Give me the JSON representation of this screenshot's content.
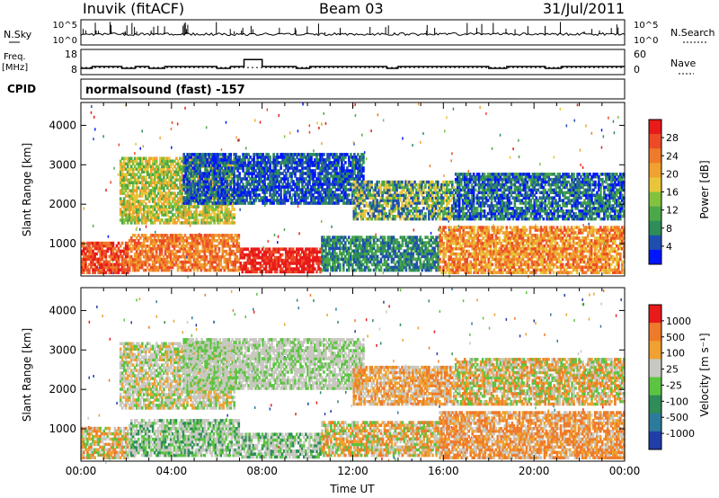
{
  "header": {
    "station": "Inuvik (fitACF)",
    "beam": "Beam 03",
    "date": "31/Jul/2011"
  },
  "chart_data": [
    {
      "type": "line",
      "panel": "noise",
      "left_label": "N.Sky",
      "right_label": "N.Search",
      "left_ticks": [
        "10^5",
        "10^0"
      ],
      "right_ticks": [
        "10^5",
        "10^0"
      ],
      "series_color": "#000000"
    },
    {
      "type": "line",
      "panel": "frequency",
      "left_label": "Freq. [MHz]",
      "right_label": "Nave",
      "left_ticks": [
        "18",
        "8"
      ],
      "right_ticks": [
        "60",
        "0"
      ],
      "freq_segments": [
        {
          "start": 0.0,
          "end": 0.5,
          "value": 10.5
        },
        {
          "start": 0.5,
          "end": 1.8,
          "value": 11.2
        },
        {
          "start": 1.8,
          "end": 2.4,
          "value": 10.5
        },
        {
          "start": 2.4,
          "end": 3.0,
          "value": 11.2
        },
        {
          "start": 3.0,
          "end": 3.7,
          "value": 10.5
        },
        {
          "start": 3.7,
          "end": 6.0,
          "value": 11.2
        },
        {
          "start": 6.0,
          "end": 6.6,
          "value": 10.5
        },
        {
          "start": 6.6,
          "end": 7.2,
          "value": 11.2
        },
        {
          "start": 7.2,
          "end": 8.0,
          "value": 14.0
        },
        {
          "start": 8.0,
          "end": 9.5,
          "value": 11.2
        },
        {
          "start": 9.5,
          "end": 10.1,
          "value": 10.5
        },
        {
          "start": 10.1,
          "end": 13.5,
          "value": 11.2
        },
        {
          "start": 13.5,
          "end": 14.0,
          "value": 10.5
        },
        {
          "start": 14.0,
          "end": 18.0,
          "value": 11.2
        },
        {
          "start": 18.0,
          "end": 18.8,
          "value": 10.5
        },
        {
          "start": 18.8,
          "end": 20.5,
          "value": 11.2
        },
        {
          "start": 20.5,
          "end": 21.2,
          "value": 10.5
        },
        {
          "start": 21.2,
          "end": 24.0,
          "value": 11.2
        }
      ],
      "nave_level": 10.8
    },
    {
      "type": "heatmap",
      "panel": "cpid",
      "label": "CPID",
      "text": "normalsound (fast) -157"
    },
    {
      "type": "heatmap",
      "panel": "power",
      "xlabel": "",
      "ylabel": "Slant Range [km]",
      "xlim": [
        0,
        24
      ],
      "ylim": [
        180,
        4580
      ],
      "yticks": [
        "1000",
        "2000",
        "3000",
        "4000"
      ],
      "colorbar": {
        "label": "Power [dB]",
        "ticks": [
          "4",
          "8",
          "12",
          "16",
          "20",
          "24",
          "28"
        ],
        "colors": [
          "#0015ff",
          "#1e4fb0",
          "#2e8d58",
          "#4ba84a",
          "#82c23c",
          "#e9c53a",
          "#f0a12f",
          "#ef7a2a",
          "#ec4b26",
          "#e81a1a"
        ]
      },
      "echo_regions": [
        {
          "t0": 0.0,
          "t1": 2.1,
          "r0": 240,
          "r1": 1050,
          "levels": [
            7,
            8,
            9
          ]
        },
        {
          "t0": 2.1,
          "t1": 7.0,
          "r0": 300,
          "r1": 1250,
          "levels": [
            6,
            7,
            8
          ]
        },
        {
          "t0": 7.0,
          "t1": 10.6,
          "r0": 260,
          "r1": 900,
          "levels": [
            8,
            9,
            9
          ]
        },
        {
          "t0": 10.6,
          "t1": 15.8,
          "r0": 300,
          "r1": 1200,
          "levels": [
            1,
            2,
            3
          ]
        },
        {
          "t0": 15.8,
          "t1": 24.0,
          "r0": 240,
          "r1": 1450,
          "levels": [
            5,
            6,
            7,
            8
          ]
        },
        {
          "t0": 1.7,
          "t1": 6.8,
          "r0": 1500,
          "r1": 3200,
          "levels": [
            3,
            4,
            5,
            6
          ]
        },
        {
          "t0": 4.5,
          "t1": 12.5,
          "r0": 2000,
          "r1": 3300,
          "levels": [
            0,
            1,
            2
          ]
        },
        {
          "t0": 12.0,
          "t1": 16.5,
          "r0": 1600,
          "r1": 2600,
          "levels": [
            1,
            3,
            5
          ]
        },
        {
          "t0": 16.5,
          "t1": 24.0,
          "r0": 1600,
          "r1": 2800,
          "levels": [
            0,
            1,
            2,
            3
          ]
        }
      ]
    },
    {
      "type": "heatmap",
      "panel": "velocity",
      "xlabel": "Time UT",
      "ylabel": "Slant Range [km]",
      "xlim": [
        0,
        24
      ],
      "ylim": [
        180,
        4580
      ],
      "yticks": [
        "1000",
        "2000",
        "3000",
        "4000"
      ],
      "xticks": [
        "00:00",
        "04:00",
        "08:00",
        "12:00",
        "16:00",
        "20:00",
        "00:00"
      ],
      "colorbar": {
        "label": "Velocity [m s⁻¹]",
        "ticks": [
          "1000",
          "500",
          "100",
          "25",
          "-25",
          "-100",
          "-500",
          "-1000"
        ],
        "colors": [
          "#1f3ea8",
          "#2d7b9c",
          "#2e8d58",
          "#5cc442",
          "#c8c8c0",
          "#f0a12f",
          "#ef7a2a",
          "#e81a1a"
        ]
      },
      "echo_regions": [
        {
          "t0": 0.0,
          "t1": 2.1,
          "r0": 240,
          "r1": 1050,
          "levels": [
            5,
            6,
            3,
            4
          ]
        },
        {
          "t0": 2.1,
          "t1": 7.0,
          "r0": 300,
          "r1": 1250,
          "levels": [
            2,
            3,
            4,
            4
          ]
        },
        {
          "t0": 7.0,
          "t1": 10.6,
          "r0": 260,
          "r1": 900,
          "levels": [
            4,
            4,
            3,
            2
          ]
        },
        {
          "t0": 10.6,
          "t1": 15.8,
          "r0": 300,
          "r1": 1200,
          "levels": [
            5,
            6,
            4,
            3
          ]
        },
        {
          "t0": 15.8,
          "t1": 24.0,
          "r0": 240,
          "r1": 1450,
          "levels": [
            5,
            6,
            6,
            4
          ]
        },
        {
          "t0": 1.7,
          "t1": 6.8,
          "r0": 1500,
          "r1": 3200,
          "levels": [
            4,
            4,
            3,
            5
          ]
        },
        {
          "t0": 4.5,
          "t1": 12.5,
          "r0": 2000,
          "r1": 3300,
          "levels": [
            4,
            4,
            3
          ]
        },
        {
          "t0": 12.0,
          "t1": 16.5,
          "r0": 1600,
          "r1": 2600,
          "levels": [
            4,
            5,
            6
          ]
        },
        {
          "t0": 16.5,
          "t1": 24.0,
          "r0": 1600,
          "r1": 2800,
          "levels": [
            4,
            5,
            6,
            3
          ]
        }
      ]
    }
  ]
}
